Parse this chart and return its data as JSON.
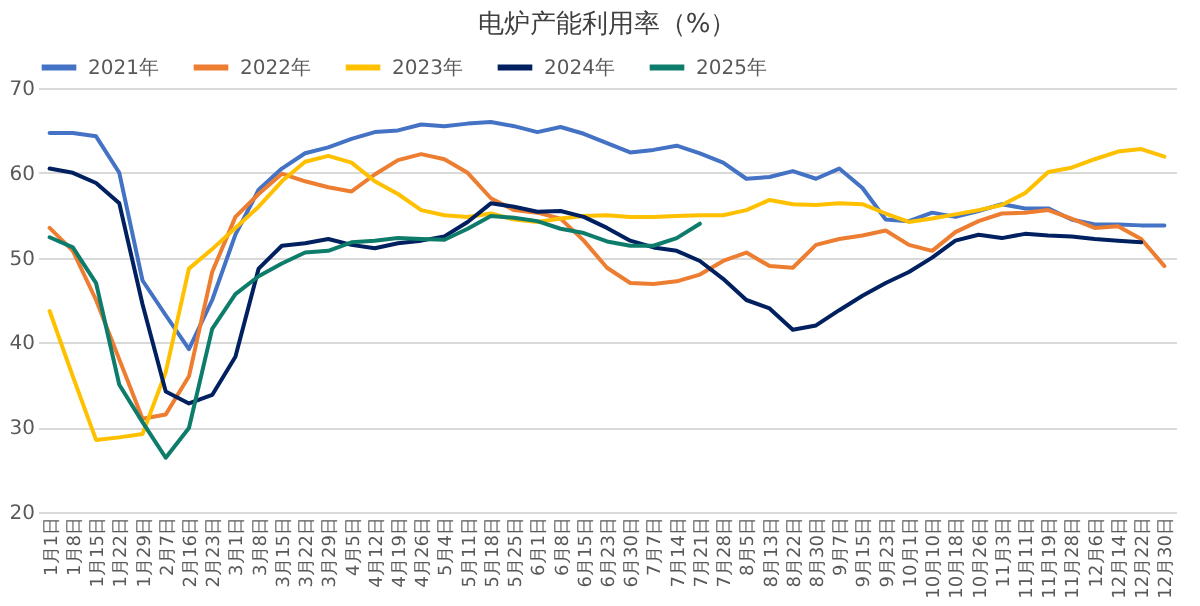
{
  "chart_data": {
    "type": "line",
    "title": "电炉产能利用率（%）",
    "categories": [
      "1月1日",
      "1月8日",
      "1月15日",
      "1月22日",
      "1月29日",
      "2月7日",
      "2月16日",
      "2月23日",
      "3月1日",
      "3月8日",
      "3月15日",
      "3月22日",
      "3月29日",
      "4月5日",
      "4月12日",
      "4月19日",
      "4月26日",
      "5月4日",
      "5月11日",
      "5月18日",
      "5月25日",
      "6月1日",
      "6月8日",
      "6月15日",
      "6月23日",
      "6月30日",
      "7月7日",
      "7月14日",
      "7月21日",
      "7月28日",
      "8月5日",
      "8月13日",
      "8月22日",
      "8月30日",
      "9月7日",
      "9月15日",
      "9月23日",
      "10月1日",
      "10月10日",
      "10月18日",
      "10月26日",
      "11月3日",
      "11月11日",
      "11月19日",
      "11月28日",
      "12月6日",
      "12月14日",
      "12月22日",
      "12月30日"
    ],
    "series": [
      {
        "name": "2021年",
        "color": "#4472c4",
        "values": [
          64.7,
          64.7,
          64.3,
          60,
          47.3,
          43.2,
          39.2,
          45,
          52.7,
          58,
          60.5,
          62.3,
          63,
          64,
          64.8,
          65,
          65.7,
          65.5,
          65.8,
          66,
          65.5,
          64.8,
          65.4,
          64.6,
          63.5,
          62.4,
          62.7,
          63.2,
          62.3,
          61.2,
          59.3,
          59.5,
          60.2,
          59.3,
          60.5,
          58.2,
          54.5,
          54.3,
          55.3,
          54.8,
          55.5,
          56.3,
          55.8,
          55.8,
          54.5,
          53.9,
          53.9,
          53.8,
          53.8
        ]
      },
      {
        "name": "2022年",
        "color": "#ed7d31",
        "values": [
          53.5,
          50.8,
          45,
          38,
          31,
          31.5,
          36,
          48.3,
          54.8,
          57.5,
          59.9,
          59,
          58.3,
          57.8,
          59.8,
          61.5,
          62.2,
          61.6,
          60,
          57,
          55.6,
          55.3,
          54.6,
          52,
          48.8,
          47,
          46.9,
          47.2,
          48,
          49.6,
          50.6,
          49,
          48.8,
          51.5,
          52.2,
          52.6,
          53.2,
          51.5,
          50.8,
          53,
          54.3,
          55.2,
          55.3,
          55.6,
          54.6,
          53.5,
          53.7,
          52.2,
          49
        ]
      },
      {
        "name": "2023年",
        "color": "#ffc000",
        "values": [
          43.7,
          36,
          28.5,
          28.8,
          29.2,
          36.5,
          48.7,
          51,
          53.5,
          56,
          59,
          61.3,
          62,
          61.2,
          59,
          57.5,
          55.6,
          55,
          54.8,
          55.2,
          54.5,
          54.2,
          54.6,
          54.9,
          55,
          54.8,
          54.8,
          54.9,
          55,
          55,
          55.6,
          56.8,
          56.3,
          56.2,
          56.4,
          56.3,
          55.2,
          54.2,
          54.6,
          55.1,
          55.6,
          56.2,
          57.6,
          60.1,
          60.6,
          61.6,
          62.5,
          62.8,
          61.9
        ]
      },
      {
        "name": "2024年",
        "color": "#002060",
        "values": [
          60.5,
          60,
          58.8,
          56.4,
          44.5,
          34.2,
          32.8,
          33.8,
          38.3,
          48.7,
          51.4,
          51.7,
          52.2,
          51.5,
          51.1,
          51.7,
          52,
          52.5,
          54.2,
          56.4,
          56,
          55.4,
          55.5,
          54.8,
          53.5,
          52,
          51.2,
          50.8,
          49.6,
          47.5,
          45,
          44,
          41.5,
          42,
          43.8,
          45.5,
          47,
          48.3,
          50,
          52,
          52.7,
          52.3,
          52.8,
          52.6,
          52.5,
          52.2,
          52,
          51.8,
          null
        ]
      },
      {
        "name": "2025年",
        "color": "#0e7c6b",
        "values": [
          52.4,
          51.2,
          47,
          35,
          30.6,
          26.4,
          29.9,
          41.6,
          45.7,
          47.8,
          49.3,
          50.6,
          50.8,
          51.8,
          52,
          52.3,
          52.2,
          52.1,
          53.4,
          54.9,
          54.7,
          54.3,
          53.4,
          52.9,
          51.9,
          51.4,
          51.4,
          52.3,
          54,
          null,
          null,
          null,
          null,
          null,
          null,
          null,
          null,
          null,
          null,
          null,
          null,
          null,
          null,
          null,
          null,
          null,
          null,
          null,
          null
        ]
      }
    ],
    "ylim": [
      20,
      70
    ],
    "yticks": [
      20,
      30,
      40,
      50,
      60,
      70
    ],
    "grid": "y",
    "legend": "top"
  }
}
